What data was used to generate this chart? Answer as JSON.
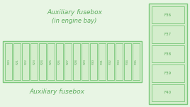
{
  "bg_color": "#e8f5e4",
  "box_fill": "#d4edcc",
  "box_edge": "#7cc87c",
  "text_color": "#5aaa5a",
  "title_top": "Auxiliary fusebox",
  "title_sub": "(in engine bay)",
  "title_bottom": "Auxiliary fusebox",
  "fuses_main": [
    "F20",
    "F21",
    "F22",
    "F23",
    "F24",
    "F25",
    "F26",
    "F27",
    "F28",
    "F29",
    "F30",
    "F31",
    "F32",
    "F33",
    "F34",
    "F35"
  ],
  "fuses_side": [
    "F36",
    "F37",
    "F38",
    "F39",
    "F40"
  ]
}
